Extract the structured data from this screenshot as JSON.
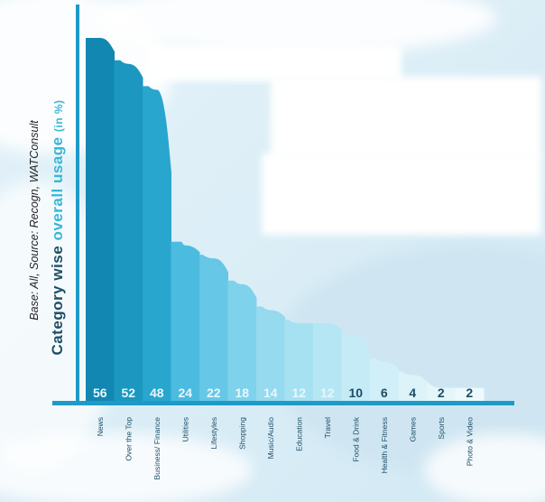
{
  "chart_data": {
    "type": "bar",
    "title_parts": [
      "Category wise",
      "overall usage",
      "(in %)"
    ],
    "base_note": "Base: All, Source: Recogn, WATConsult",
    "categories": [
      "News",
      "Over the Top",
      "Business/ Finance",
      "Utilities",
      "Lifestyles",
      "Shopping",
      "Music/Audio",
      "Education",
      "Travel",
      "Food & Drink",
      "Health & Fitness",
      "Games",
      "Sports",
      "Photo & Video"
    ],
    "values": [
      56,
      52,
      48,
      24,
      22,
      18,
      14,
      12,
      12,
      10,
      6,
      4,
      2,
      2
    ],
    "ylim": [
      0,
      60
    ],
    "grid": false,
    "colors": [
      "#1287b1",
      "#1b97c0",
      "#29a6cd",
      "#4cbbe0",
      "#66c7e6",
      "#7fd2ec",
      "#95daef",
      "#a6e1f2",
      "#b5e6f4",
      "#c4ebf6",
      "#d1eff8",
      "#dcf3f9",
      "#e5f6fb",
      "#edf9fc"
    ],
    "axis_color": "#1e9ac7",
    "text_color": "#1d4d66"
  }
}
